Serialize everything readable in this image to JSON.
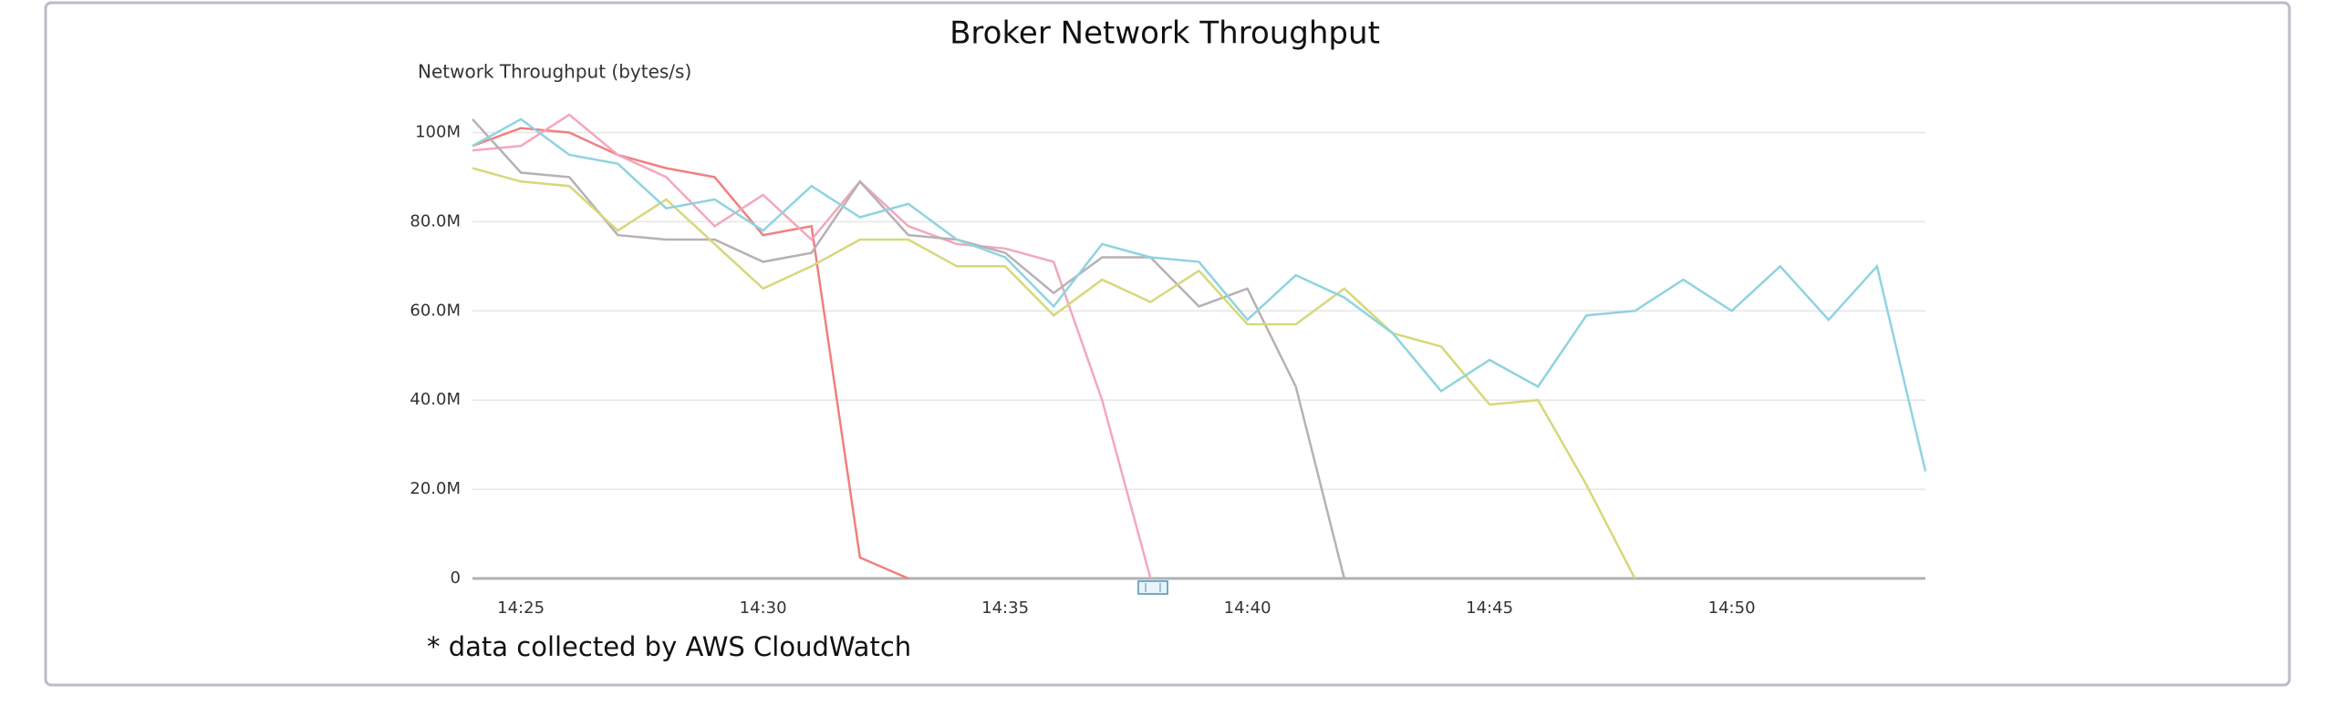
{
  "chart_data": {
    "type": "line",
    "title": "Broker Network Throughput",
    "y_label": "Network Throughput (bytes/s)",
    "footnote": "* data collected by AWS CloudWatch",
    "x": [
      "14:24",
      "14:25",
      "14:26",
      "14:27",
      "14:28",
      "14:29",
      "14:30",
      "14:31",
      "14:32",
      "14:33",
      "14:34",
      "14:35",
      "14:36",
      "14:37",
      "14:38",
      "14:39",
      "14:40",
      "14:41",
      "14:42",
      "14:43",
      "14:44",
      "14:45",
      "14:46",
      "14:47",
      "14:48",
      "14:49",
      "14:50",
      "14:51",
      "14:52",
      "14:53",
      "14:54"
    ],
    "xlim": [
      "14:24",
      "14:54"
    ],
    "xticks": [
      "14:25",
      "14:30",
      "14:35",
      "14:40",
      "14:45",
      "14:50"
    ],
    "ylim": [
      0,
      105000000
    ],
    "yticks": [
      0,
      {
        "value": 20000000,
        "label": "20.0M"
      },
      {
        "value": 40000000,
        "label": "40.0M"
      },
      {
        "value": 60000000,
        "label": "60.0M"
      },
      {
        "value": 80000000,
        "label": "80.0M"
      },
      {
        "value": 100000000,
        "label": "100M"
      }
    ],
    "grid": true,
    "series": [
      {
        "color": "#f08080",
        "values": [
          97000000,
          101000000,
          100000000,
          95000000,
          92000000,
          90000000,
          77000000,
          79000000,
          4700000,
          0,
          null,
          null,
          null,
          null,
          null,
          null,
          null,
          null,
          null,
          null,
          null,
          null,
          null,
          null,
          null,
          null,
          null,
          null,
          null,
          null,
          null
        ]
      },
      {
        "color": "#f4a7bb",
        "values": [
          96000000,
          97000000,
          104000000,
          95000000,
          90000000,
          79000000,
          86000000,
          76000000,
          89000000,
          79000000,
          75000000,
          74000000,
          71000000,
          40000000,
          0,
          null,
          null,
          null,
          null,
          null,
          null,
          null,
          null,
          null,
          null,
          null,
          null,
          null,
          null,
          null,
          null
        ]
      },
      {
        "color": "#b8b0b4",
        "values": [
          103000000,
          91000000,
          90000000,
          77000000,
          76000000,
          76000000,
          71000000,
          73000000,
          89000000,
          77000000,
          76000000,
          73000000,
          64000000,
          72000000,
          72000000,
          61000000,
          65000000,
          43000000,
          0,
          null,
          null,
          null,
          null,
          null,
          null,
          null,
          null,
          null,
          null,
          null,
          null
        ]
      },
      {
        "color": "#d6d87a",
        "values": [
          92000000,
          89000000,
          88000000,
          78000000,
          85000000,
          75000000,
          65000000,
          70000000,
          76000000,
          76000000,
          70000000,
          70000000,
          59000000,
          67000000,
          62000000,
          69000000,
          57000000,
          57000000,
          65000000,
          55000000,
          52000000,
          39000000,
          40000000,
          21000000,
          0,
          null,
          null,
          null,
          null,
          null,
          null
        ]
      },
      {
        "color": "#8fd3e0",
        "values": [
          97000000,
          103000000,
          95000000,
          93000000,
          83000000,
          85000000,
          78000000,
          88000000,
          81000000,
          84000000,
          76000000,
          72000000,
          61000000,
          75000000,
          72000000,
          71000000,
          58000000,
          68000000,
          63000000,
          55000000,
          42000000,
          49000000,
          43000000,
          59000000,
          60000000,
          67000000,
          60000000,
          70000000,
          58000000,
          70000000,
          24000000
        ]
      }
    ]
  }
}
